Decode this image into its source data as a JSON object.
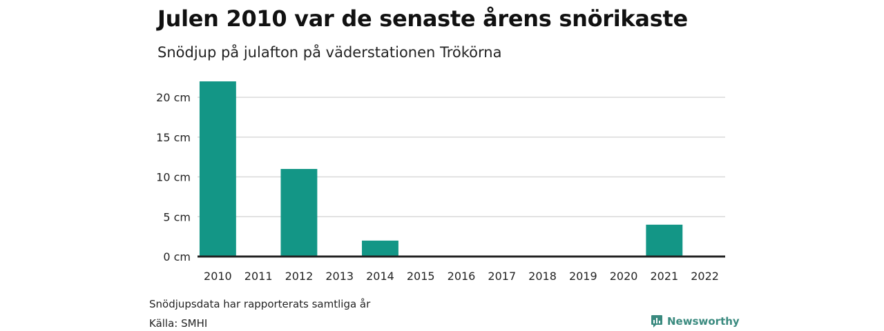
{
  "header": {
    "title": "Julen 2010 var de senaste årens snörikaste",
    "subtitle": "Snödjup på julafton på väderstationen Trökörna"
  },
  "footer": {
    "note": "Snödjupsdata har rapporterats samtliga år",
    "source": "Källa: SMHI",
    "brand": "Newsworthy",
    "brand_icon": "newsworthy-logo-icon"
  },
  "colors": {
    "bar": "#139686",
    "axis": "#222222",
    "grid": "#d9d9d9",
    "brand": "#3a8a7f"
  },
  "chart_data": {
    "type": "bar",
    "title": "Julen 2010 var de senaste årens snörikaste",
    "subtitle": "Snödjup på julafton på väderstationen Trökörna",
    "xlabel": "",
    "ylabel": "",
    "categories": [
      "2010",
      "2011",
      "2012",
      "2013",
      "2014",
      "2015",
      "2016",
      "2017",
      "2018",
      "2019",
      "2020",
      "2021",
      "2022"
    ],
    "values": [
      22,
      0,
      11,
      0,
      2,
      0,
      0,
      0,
      0,
      0,
      0,
      4,
      0
    ],
    "unit": "cm",
    "ylim": [
      0,
      22
    ],
    "yticks": [
      0,
      5,
      10,
      15,
      20
    ],
    "ytick_labels": [
      "0 cm",
      "5 cm",
      "10 cm",
      "15 cm",
      "20 cm"
    ],
    "grid": true,
    "legend": "none"
  }
}
